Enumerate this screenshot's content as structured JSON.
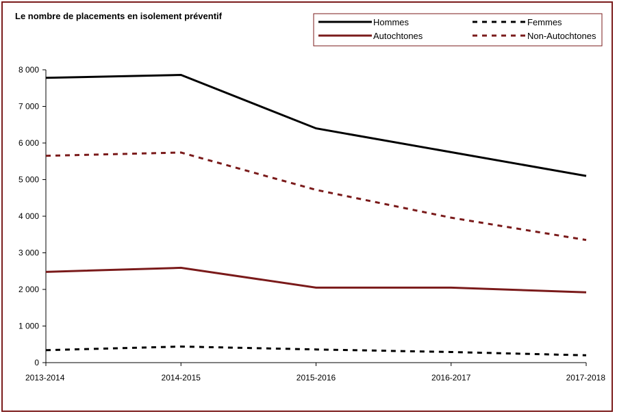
{
  "chart_data": {
    "type": "line",
    "title": "Le nombre de placements en isolement préventif",
    "xlabel": "",
    "ylabel": "",
    "categories": [
      "2013-2014",
      "2014-2015",
      "2015-2016",
      "2016-2017",
      "2017-2018"
    ],
    "ylim": [
      0,
      8000
    ],
    "yticks": [
      0,
      1000,
      2000,
      3000,
      4000,
      5000,
      6000,
      7000,
      8000
    ],
    "ytick_labels": [
      "0",
      "1 000",
      "2 000",
      "3 000",
      "4 000",
      "5 000",
      "6 000",
      "7 000",
      "8 000"
    ],
    "grid": false,
    "legend_position": "top-right",
    "series": [
      {
        "name": "Hommes",
        "values": [
          7780,
          7860,
          6400,
          5750,
          5100
        ],
        "color": "#000000",
        "style": "solid"
      },
      {
        "name": "Femmes",
        "values": [
          340,
          440,
          360,
          290,
          200
        ],
        "color": "#000000",
        "style": "dashed"
      },
      {
        "name": "Autochtones",
        "values": [
          2480,
          2590,
          2050,
          2050,
          1920
        ],
        "color": "#7a1a1a",
        "style": "solid"
      },
      {
        "name": "Non-Autochtones",
        "values": [
          5650,
          5740,
          4720,
          3960,
          3350
        ],
        "color": "#7a1a1a",
        "style": "dashed"
      }
    ]
  }
}
